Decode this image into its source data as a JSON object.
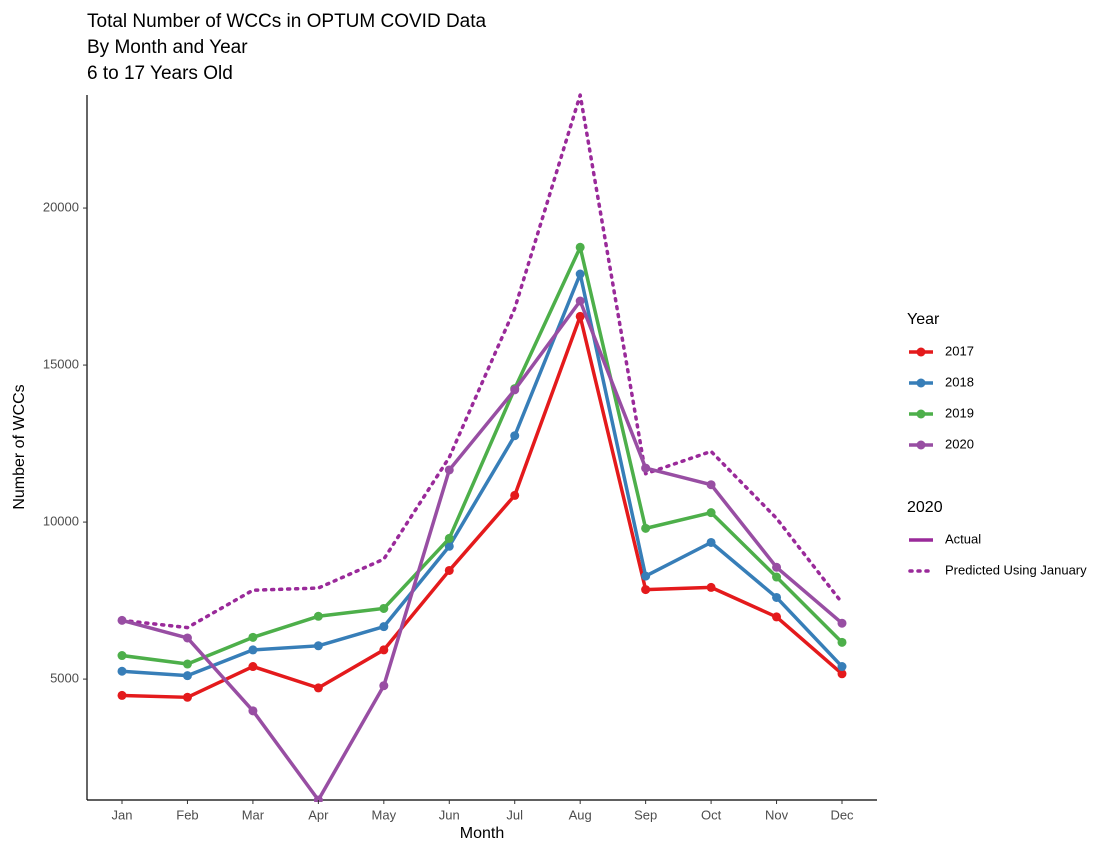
{
  "chart_data": {
    "type": "line",
    "title": "Total Number of WCCs in OPTUM COVID Data",
    "subtitle": "By Month and Year",
    "subtitle2": "6 to 17 Years Old",
    "x_label": "Month",
    "y_label": "Number of WCCs",
    "categories": [
      "Jan",
      "Feb",
      "Mar",
      "Apr",
      "May",
      "Jun",
      "Jul",
      "Aug",
      "Sep",
      "Oct",
      "Nov",
      "Dec"
    ],
    "ylim": [
      1150,
      23600
    ],
    "yticks": [
      5000,
      10000,
      15000,
      20000
    ],
    "grid": false,
    "legend_position": "right",
    "legend_title": "Year",
    "series": [
      {
        "name": "2017",
        "color": "#e41a1c",
        "values": [
          4480,
          4420,
          5400,
          4720,
          5930,
          8460,
          10850,
          16550,
          7850,
          7920,
          6980,
          5170
        ]
      },
      {
        "name": "2018",
        "color": "#377eb8",
        "values": [
          5250,
          5110,
          5930,
          6060,
          6670,
          9230,
          12750,
          17900,
          8280,
          9350,
          7600,
          5400
        ]
      },
      {
        "name": "2019",
        "color": "#4daf4a",
        "values": [
          5750,
          5480,
          6330,
          7000,
          7250,
          9480,
          14250,
          18750,
          9800,
          10300,
          8250,
          6170
        ]
      },
      {
        "name": "2020",
        "color": "#984ea3",
        "values": [
          6870,
          6310,
          3990,
          1150,
          4790,
          11660,
          14210,
          17040,
          11720,
          11190,
          8560,
          6780
        ]
      }
    ],
    "legend2_title": "2020",
    "legend2_actual": "Actual",
    "prediction": {
      "name": "Predicted Using January",
      "color": "#9a2a9a",
      "values": [
        6870,
        6640,
        7830,
        7900,
        8820,
        12060,
        16800,
        23600,
        11540,
        12250,
        10120,
        7430
      ]
    }
  }
}
